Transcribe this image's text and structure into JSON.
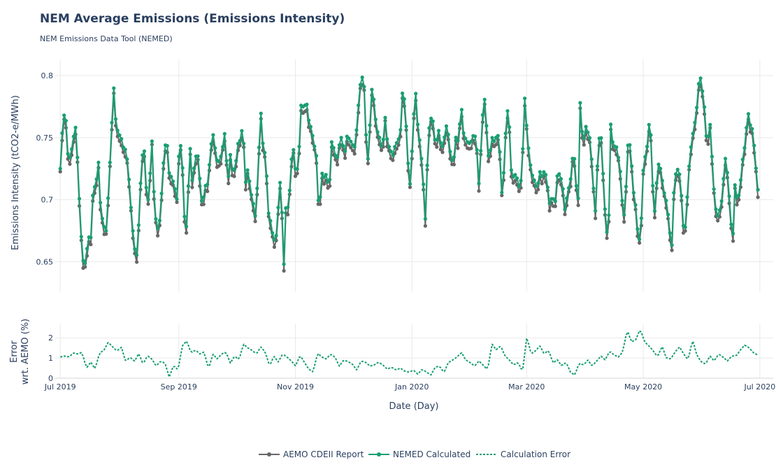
{
  "header": {
    "title": "NEM Average Emissions (Emissions Intensity)",
    "subtitle": "NEM Emissions Data Tool (NEMED)"
  },
  "colors": {
    "aemo": "#676767",
    "nemed": "#1a9e73",
    "grid": "#e9e9e9"
  },
  "chart_data": [
    {
      "type": "line",
      "ylabel": "Emissions Intensity (tCO2-e/MWh)",
      "xlabel": "Date (Day)",
      "ylim": [
        0.626,
        0.813
      ],
      "yticks": [
        0.65,
        0.7,
        0.75,
        0.8
      ],
      "xlim": [
        "2019-06-28",
        "2020-07-08"
      ],
      "xticks": [
        {
          "date": "2019-07-01",
          "label": "Jul 2019"
        },
        {
          "date": "2019-09-01",
          "label": "Sep 2019"
        },
        {
          "date": "2019-11-01",
          "label": "Nov 2019"
        },
        {
          "date": "2020-01-01",
          "label": "Jan 2020"
        },
        {
          "date": "2020-03-01",
          "label": "Mar 2020"
        },
        {
          "date": "2020-05-01",
          "label": "May 2020"
        },
        {
          "date": "2020-07-01",
          "label": "Jul 2020"
        }
      ],
      "x_start": "2019-07-01",
      "x_end": "2020-06-30",
      "anchor_values": [
        0.725,
        0.763,
        0.773,
        0.737,
        0.733,
        0.748,
        0.759,
        0.727,
        0.678,
        0.651,
        0.648,
        0.671,
        0.667,
        0.712,
        0.709,
        0.733,
        0.69,
        0.681,
        0.672,
        0.707,
        0.746,
        0.793,
        0.76,
        0.753,
        0.75,
        0.741,
        0.74,
        0.72,
        0.69,
        0.666,
        0.651,
        0.683,
        0.73,
        0.745,
        0.706,
        0.697,
        0.756,
        0.702,
        0.676,
        0.678,
        0.707,
        0.74,
        0.749,
        0.72,
        0.718,
        0.711,
        0.7,
        0.749,
        0.737,
        0.685,
        0.676,
        0.749,
        0.715,
        0.729,
        0.741,
        0.717,
        0.693,
        0.711,
        0.712,
        0.733,
        0.756,
        0.742,
        0.729,
        0.732,
        0.742,
        0.756,
        0.711,
        0.737,
        0.722,
        0.725,
        0.745,
        0.748,
        0.761,
        0.713,
        0.726,
        0.707,
        0.698,
        0.685,
        0.725,
        0.773,
        0.741,
        0.736,
        0.69,
        0.682,
        0.668,
        0.667,
        0.697,
        0.723,
        0.639,
        0.699,
        0.691,
        0.731,
        0.741,
        0.717,
        0.735,
        0.779,
        0.773,
        0.78,
        0.763,
        0.757,
        0.745,
        0.735,
        0.685,
        0.722,
        0.718,
        0.721,
        0.707,
        0.747,
        0.74,
        0.731,
        0.744,
        0.752,
        0.735,
        0.751,
        0.749,
        0.745,
        0.742,
        0.76,
        0.79,
        0.799,
        0.789,
        0.722,
        0.758,
        0.796,
        0.769,
        0.755,
        0.749,
        0.739,
        0.768,
        0.745,
        0.741,
        0.735,
        0.744,
        0.747,
        0.752,
        0.791,
        0.775,
        0.732,
        0.71,
        0.756,
        0.79,
        0.757,
        0.743,
        0.718,
        0.681,
        0.752,
        0.766,
        0.763,
        0.741,
        0.758,
        0.745,
        0.742,
        0.761,
        0.752,
        0.733,
        0.73,
        0.751,
        0.746,
        0.778,
        0.753,
        0.748,
        0.745,
        0.747,
        0.753,
        0.749,
        0.713,
        0.748,
        0.788,
        0.76,
        0.728,
        0.751,
        0.747,
        0.751,
        0.752,
        0.705,
        0.726,
        0.776,
        0.761,
        0.715,
        0.721,
        0.718,
        0.709,
        0.72,
        0.784,
        0.755,
        0.732,
        0.72,
        0.715,
        0.708,
        0.723,
        0.718,
        0.725,
        0.712,
        0.695,
        0.704,
        0.695,
        0.722,
        0.72,
        0.712,
        0.69,
        0.707,
        0.713,
        0.735,
        0.732,
        0.683,
        0.785,
        0.741,
        0.76,
        0.754,
        0.748,
        0.714,
        0.69,
        0.742,
        0.758,
        0.72,
        0.682,
        0.665,
        0.762,
        0.741,
        0.745,
        0.734,
        0.719,
        0.68,
        0.71,
        0.754,
        0.735,
        0.706,
        0.693,
        0.662,
        0.683,
        0.734,
        0.735,
        0.761,
        0.75,
        0.681,
        0.712,
        0.732,
        0.72,
        0.706,
        0.698,
        0.681,
        0.658,
        0.714,
        0.725,
        0.723,
        0.7,
        0.666,
        0.698,
        0.731,
        0.749,
        0.76,
        0.776,
        0.803,
        0.79,
        0.773,
        0.74,
        0.766,
        0.732,
        0.697,
        0.686,
        0.692,
        0.702,
        0.736,
        0.721,
        0.695,
        0.662,
        0.714,
        0.697,
        0.711,
        0.733,
        0.745,
        0.772,
        0.76,
        0.756,
        0.731,
        0.708
      ],
      "series": [
        {
          "name": "AEMO CDEII Report",
          "offset_amplitude": 0.006
        },
        {
          "name": "NEMED Calculated"
        }
      ]
    },
    {
      "type": "line",
      "ylabel": "Error wrt. AEMO (%)",
      "ylim": [
        0,
        2.7
      ],
      "yticks": [
        0,
        1,
        2
      ],
      "anchor_values": [
        1.05,
        1.1,
        1.05,
        1.25,
        1.2,
        1.28,
        0.5,
        0.8,
        0.45,
        1.25,
        1.38,
        1.78,
        1.55,
        1.35,
        1.55,
        0.82,
        1.05,
        0.82,
        1.22,
        0.7,
        1.12,
        0.95,
        0.6,
        0.85,
        0.75,
        0.05,
        0.65,
        0.4,
        1.6,
        1.85,
        1.25,
        1.4,
        1.2,
        1.3,
        0.45,
        1.2,
        0.95,
        1.2,
        1.3,
        0.75,
        1.1,
        0.9,
        1.7,
        1.5,
        1.38,
        1.2,
        1.55,
        1.3,
        0.6,
        1.1,
        0.8,
        1.2,
        1.05,
        0.85,
        0.6,
        1.15,
        0.78,
        0.45,
        0.3,
        1.25,
        1.05,
        0.95,
        1.2,
        1.05,
        0.6,
        0.9,
        0.82,
        0.7,
        0.4,
        0.85,
        0.8,
        0.6,
        0.65,
        0.8,
        0.65,
        0.45,
        0.55,
        0.4,
        0.5,
        0.35,
        0.3,
        0.4,
        0.2,
        0.45,
        0.3,
        0.15,
        0.55,
        0.6,
        0.28,
        0.78,
        0.9,
        1.05,
        1.28,
        0.9,
        0.78,
        0.6,
        0.85,
        0.65,
        0.4,
        1.7,
        1.4,
        1.6,
        1.1,
        0.9,
        0.65,
        0.8,
        0.3,
        2.05,
        1.2,
        1.35,
        1.6,
        1.2,
        1.4,
        0.75,
        0.92,
        0.6,
        0.8,
        0.3,
        0.15,
        0.75,
        0.65,
        0.9,
        0.6,
        0.85,
        1.1,
        0.9,
        1.35,
        1.15,
        1.05,
        1.3,
        2.4,
        1.8,
        1.9,
        2.45,
        1.8,
        1.6,
        1.35,
        1.05,
        1.6,
        1.0,
        0.95,
        1.3,
        1.55,
        1.2,
        0.9,
        1.9,
        1.15,
        0.8,
        0.7,
        1.1,
        0.85,
        1.2,
        1.05,
        0.85,
        1.1,
        1.1,
        1.4,
        1.65,
        1.5,
        1.25,
        1.15
      ],
      "series": [
        {
          "name": "Calculation Error"
        }
      ]
    }
  ],
  "legend": {
    "placement": "bottom-center",
    "items": [
      "AEMO CDEII Report",
      "NEMED Calculated",
      "Calculation Error"
    ]
  }
}
